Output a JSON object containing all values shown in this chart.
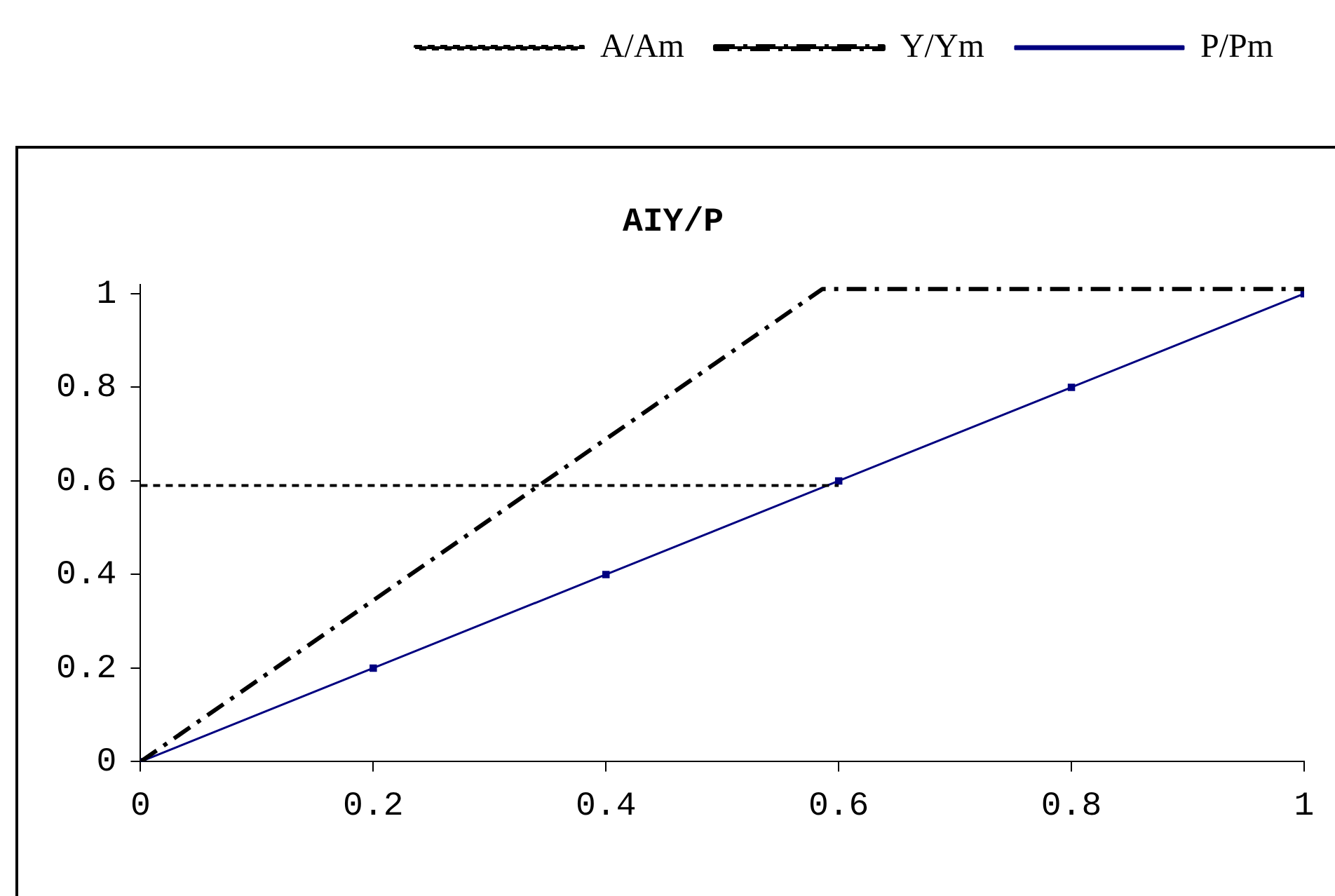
{
  "chart_data": {
    "type": "line",
    "title": "AIY/P",
    "xlim": [
      0,
      1
    ],
    "ylim": [
      0,
      1.02
    ],
    "xticks": [
      0,
      0.2,
      0.4,
      0.6,
      0.8,
      1
    ],
    "yticks": [
      0,
      0.2,
      0.4,
      0.6,
      0.8,
      1
    ],
    "legend": "top",
    "series": [
      {
        "name": "A/Am",
        "color": "#000000",
        "line_style": "dashed",
        "marker": "none",
        "x": [
          0,
          0.6
        ],
        "values": [
          0.59,
          0.59
        ]
      },
      {
        "name": "Y/Ym",
        "color": "#000000",
        "line_style": "dashdot",
        "marker": "none",
        "x": [
          0,
          0.586,
          1
        ],
        "values": [
          0,
          1.01,
          1.01
        ]
      },
      {
        "name": "P/Pm",
        "color": "#000080",
        "line_style": "solid",
        "marker": "square",
        "x": [
          0,
          0.2,
          0.4,
          0.6,
          0.8,
          1
        ],
        "values": [
          0,
          0.2,
          0.4,
          0.6,
          0.8,
          1
        ]
      }
    ]
  }
}
